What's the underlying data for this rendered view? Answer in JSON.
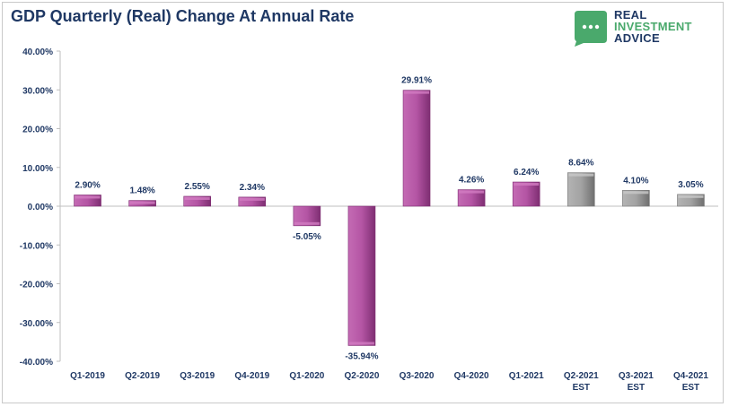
{
  "title": "GDP Quarterly (Real) Change At Annual Rate",
  "logo": {
    "line1": "REAL",
    "line2": "INVESTMENT",
    "line3": "ADVICE"
  },
  "chart_data": {
    "type": "bar",
    "title": "GDP Quarterly (Real) Change At Annual Rate",
    "categories": [
      [
        "Q1-2019"
      ],
      [
        "Q2-2019"
      ],
      [
        "Q3-2019"
      ],
      [
        "Q4-2019"
      ],
      [
        "Q1-2020"
      ],
      [
        "Q2-2020"
      ],
      [
        "Q3-2020"
      ],
      [
        "Q4-2020"
      ],
      [
        "Q1-2021"
      ],
      [
        "Q2-2021",
        "EST"
      ],
      [
        "Q3-2021",
        "EST"
      ],
      [
        "Q4-2021",
        "EST"
      ]
    ],
    "values": [
      2.9,
      1.48,
      2.55,
      2.34,
      -5.05,
      -35.94,
      29.91,
      4.26,
      6.24,
      8.64,
      4.1,
      3.05
    ],
    "labels": [
      "2.90%",
      "1.48%",
      "2.55%",
      "2.34%",
      "-5.05%",
      "-35.94%",
      "29.91%",
      "4.26%",
      "6.24%",
      "8.64%",
      "4.10%",
      "3.05%"
    ],
    "estimate": [
      false,
      false,
      false,
      false,
      false,
      false,
      false,
      false,
      false,
      true,
      true,
      true
    ],
    "ylim": [
      -40,
      40
    ],
    "yticks": [
      "40.00%",
      "30.00%",
      "20.00%",
      "10.00%",
      "0.00%",
      "-10.00%",
      "-20.00%",
      "-30.00%",
      "-40.00%"
    ],
    "ytick_values": [
      40,
      30,
      20,
      10,
      0,
      -10,
      -20,
      -30,
      -40
    ],
    "grid": false,
    "colors": {
      "actual": "#9b3f8c",
      "actual_light": "#d27cc2",
      "estimate": "#8c8c8c",
      "estimate_light": "#c8c8c8",
      "label": "#1f3864",
      "axis": "#bfbfbf"
    }
  }
}
